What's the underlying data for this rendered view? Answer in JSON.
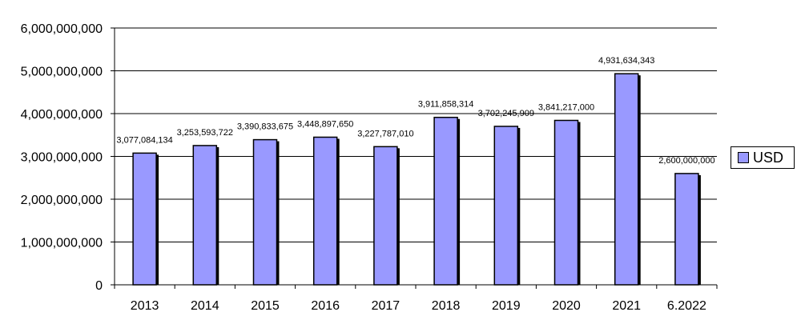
{
  "chart_data": {
    "type": "bar",
    "title": "",
    "xlabel": "",
    "ylabel": "",
    "categories": [
      "2013",
      "2014",
      "2015",
      "2016",
      "2017",
      "2018",
      "2019",
      "2020",
      "2021",
      "6.2022"
    ],
    "series": [
      {
        "name": "USD",
        "values": [
          3077084134,
          3253593722,
          3390833675,
          3448897650,
          3227787010,
          3911858314,
          3702245909,
          3841217000,
          4931634343,
          2600000000
        ],
        "data_labels": [
          "3,077,084,134",
          "3,253,593,722",
          "3,390,833,675",
          "3,448,897,650",
          "3,227,787,010",
          "3,911,858,314",
          "3,702,245,909",
          "3,841,217,000",
          "4,931,634,343",
          "2,600,000,000"
        ]
      }
    ],
    "ylim": [
      0,
      6000000000
    ],
    "yticks": [
      "0",
      "1,000,000,000",
      "2,000,000,000",
      "3,000,000,000",
      "4,000,000,000",
      "5,000,000,000",
      "6,000,000,000"
    ],
    "grid": true,
    "legend_position": "right",
    "bar_color": "#9999ff",
    "legend_label": "USD"
  }
}
